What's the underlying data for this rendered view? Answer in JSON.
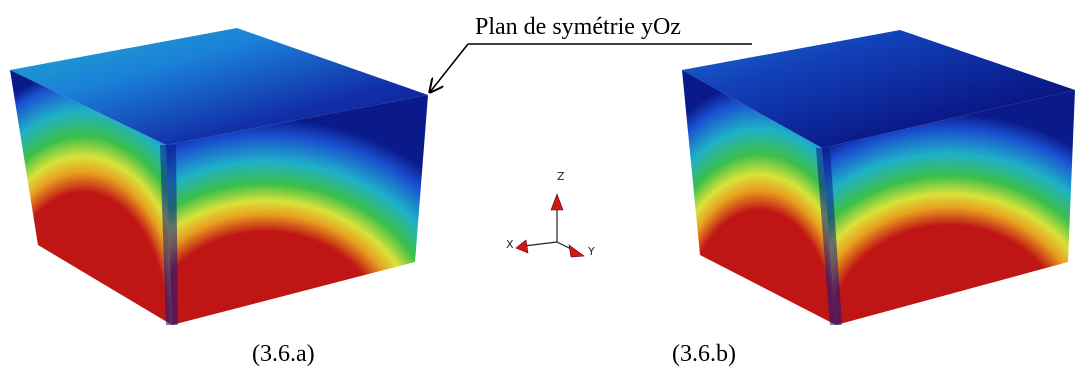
{
  "annotation": {
    "text": "Plan de symétrie yOz"
  },
  "captions": {
    "left": "(3.6.a)",
    "right": "(3.6.b)"
  },
  "axes": {
    "z": "Z",
    "x": "X",
    "y": "Y"
  },
  "colors": {
    "hot": "#c01515",
    "warm_orange": "#e8a020",
    "yellow": "#d9e23a",
    "green": "#3bbf4a",
    "cyan": "#1fb0c8",
    "blue": "#1a4fd0",
    "navy": "#0a1a8a",
    "deep": "#060f5a",
    "arrow_red": "#d01818"
  }
}
